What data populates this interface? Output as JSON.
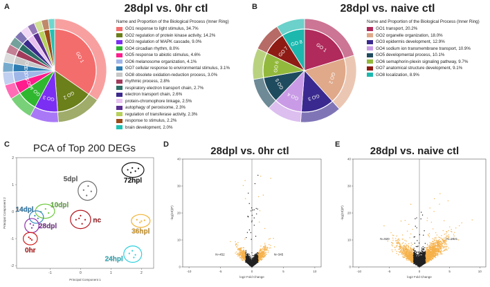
{
  "chart_data": [
    {
      "panel": "A",
      "type": "pie",
      "title": "28dpl vs. 0hr ctl",
      "legend_title": "Name and Proportion of the Biological Process (Inner Ring)",
      "categories": [
        "GO1 response to light stimulus, 34.7%",
        "GO2 regulation of protein kinase activity, 14.2%",
        "GO3 regulation of MAPK cascade, 9.0%",
        "GO4 circadian rhythm, 8.0%",
        "GO5 response to abiotic stimulus, 4.6%",
        "GO6 melanosome organization, 4.1%",
        "GO7 cellular response to environmental stimulus, 3.1%",
        "GO8 obsolete oxidation-reduction process, 3.0%",
        "rhythmic process, 2.8%",
        "respiratory electron transport chain, 2.7%",
        "electron transport chain, 2.6%",
        "protein-chromophore linkage, 2.5%",
        "autophagy of peroxisome, 2.3%",
        "regulation of transferase activity, 2.3%",
        "response to stimulus, 2.2%",
        "brain development, 2.0%"
      ],
      "slice_labels": [
        "GO 1",
        "GO 2",
        "GO 3",
        "GO 4",
        "GO 5",
        "GO 6",
        "GO 7",
        "GO 8",
        "",
        "",
        "",
        "",
        "",
        "",
        "",
        ""
      ],
      "values": [
        34.7,
        14.2,
        9.0,
        8.0,
        4.6,
        4.1,
        3.1,
        3.0,
        2.8,
        2.7,
        2.6,
        2.5,
        2.3,
        2.3,
        2.2,
        2.0
      ],
      "colors": [
        "#f46d6d",
        "#6b7f1a",
        "#7b2ff2",
        "#2fb82f",
        "#ff1c8d",
        "#9fb6e8",
        "#2d7db3",
        "#c7c7c7",
        "#a23b5c",
        "#2b6f66",
        "#3c2a8c",
        "#e7c1f0",
        "#5a2d91",
        "#b7d05a",
        "#9c4a19",
        "#1fc2b3"
      ],
      "legend_placement": "right"
    },
    {
      "panel": "B",
      "type": "pie",
      "title": "28dpl vs. naive ctl",
      "legend_title": "Name and Proportion of the Biological Process (Inner Ring)",
      "categories": [
        "GO1 transport, 20.2%",
        "GO2 organelle organization, 18.0%",
        "GO3 epidermis development, 12.9%",
        "GO4 sodium ion transmembrane transport, 10.9%",
        "GO5 developmental process, 10.1%",
        "GO6 semaphorin-plexin signaling pathway, 9.7%",
        "GO7 anatomical structure development, 9.1%",
        "GO8 localization, 8.9%"
      ],
      "slice_labels": [
        "GO 1",
        "GO 2",
        "GO 3",
        "GO 4",
        "GO 5",
        "GO 6",
        "GO 7",
        "GO 8"
      ],
      "values": [
        20.2,
        18.0,
        12.9,
        10.9,
        10.1,
        9.7,
        9.1,
        8.9
      ],
      "colors": [
        "#b02a5b",
        "#e0a98a",
        "#3a2a8f",
        "#c99be6",
        "#1f4b5e",
        "#93b93c",
        "#8e1c14",
        "#1cb8ae"
      ],
      "legend_placement": "right"
    },
    {
      "panel": "C",
      "type": "scatter",
      "title": "PCA of Top 200 DEGs",
      "xlabel": "Principal Component 1",
      "ylabel": "Principal Component 2",
      "xlim": [
        -2.1,
        2.4
      ],
      "ylim": [
        -2.1,
        2.0
      ],
      "xticks": [
        -1,
        0,
        1,
        2
      ],
      "yticks": [
        -2,
        -1,
        0,
        1,
        2
      ],
      "groups": [
        {
          "name": "5dpl",
          "color": "#6f6f6f",
          "x": [
            0.1,
            0.25,
            0.35,
            0.2
          ],
          "y": [
            0.8,
            0.95,
            0.75,
            0.6
          ]
        },
        {
          "name": "72hpl",
          "color": "#111111",
          "x": [
            1.55,
            1.7,
            1.8,
            1.65,
            1.9
          ],
          "y": [
            1.55,
            1.62,
            1.5,
            1.45,
            1.6
          ]
        },
        {
          "name": "10dpl",
          "color": "#6cc93c",
          "x": [
            -1.3,
            -1.15,
            -1.05
          ],
          "y": [
            0.0,
            0.1,
            -0.05
          ]
        },
        {
          "name": "14dpl",
          "color": "#2e86c1",
          "x": [
            -1.5,
            -1.4
          ],
          "y": [
            -0.15,
            -0.25
          ]
        },
        {
          "name": "nc",
          "color": "#b3121a",
          "x": [
            -0.15,
            0.0,
            0.15,
            0.05,
            -0.05
          ],
          "y": [
            -0.3,
            -0.15,
            -0.3,
            -0.45,
            -0.25
          ]
        },
        {
          "name": "28dpl",
          "color": "#8e2fa8",
          "x": [
            -1.65,
            -1.55,
            -1.6
          ],
          "y": [
            -0.45,
            -0.5,
            -0.6
          ]
        },
        {
          "name": "0hr",
          "color": "#d01b1b",
          "x": [
            -1.7,
            -1.6,
            -1.65
          ],
          "y": [
            -0.95,
            -1.05,
            -1.0
          ]
        },
        {
          "name": "36hpl",
          "color": "#f2b233",
          "x": [
            1.85,
            2.0,
            2.1,
            1.95
          ],
          "y": [
            -0.3,
            -0.35,
            -0.32,
            -0.4
          ]
        },
        {
          "name": "24hpl",
          "color": "#2fd0df",
          "x": [
            1.6,
            1.7,
            1.8,
            1.75
          ],
          "y": [
            -1.55,
            -1.45,
            -1.6,
            -1.7
          ]
        }
      ]
    },
    {
      "panel": "D",
      "type": "scatter",
      "title": "28dpl vs. 0hr ctl",
      "xlabel": "log2 Fold Change",
      "ylabel": "-log(10)(P)",
      "xlim": [
        -11,
        11
      ],
      "ylim": [
        0,
        40
      ],
      "xticks": [
        -10,
        -5,
        0,
        5,
        10
      ],
      "yticks": [
        0,
        10,
        20,
        30,
        40
      ],
      "annotations": [
        {
          "text": "N=452",
          "x": -5.8,
          "y": 4.2
        },
        {
          "text": "N=345",
          "x": 3.5,
          "y": 4.2
        }
      ]
    },
    {
      "panel": "E",
      "type": "scatter",
      "title": "28dpl vs. naive ctl",
      "xlabel": "log2 Fold Change",
      "ylabel": "-log(10)(P)",
      "xlim": [
        -11,
        11
      ],
      "ylim": [
        0,
        40
      ],
      "xticks": [
        -10,
        -5,
        0,
        5,
        10
      ],
      "yticks": [
        0,
        10,
        20,
        30,
        40
      ],
      "annotations": [
        {
          "text": "N=920",
          "x": -6.5,
          "y": 10
        },
        {
          "text": "N=2621",
          "x": 4.5,
          "y": 10
        }
      ]
    }
  ],
  "panel_letters": [
    "A",
    "B",
    "C",
    "D",
    "E"
  ],
  "volcano_colors": {
    "sig": "#f6b14a",
    "ns": "#222222"
  }
}
